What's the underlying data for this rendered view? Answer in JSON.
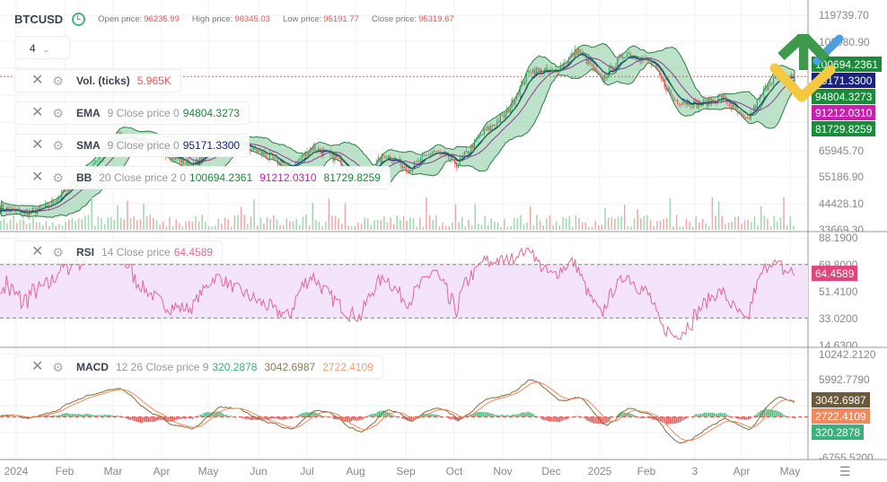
{
  "header": {
    "symbol": "BTCUSD",
    "open_label": "Open price:",
    "open": "96235.99",
    "high_label": "High price:",
    "high": "96345.03",
    "low_label": "Low price:",
    "low": "95191.77",
    "close_label": "Close price:",
    "close": "95319.67",
    "interval": "4"
  },
  "legends": {
    "vol": {
      "name": "Vol. (ticks)",
      "value": "5.965K"
    },
    "ema": {
      "name": "EMA",
      "params": "9 Close price 0",
      "value": "94804.3273"
    },
    "sma": {
      "name": "SMA",
      "params": "9 Close price 0",
      "value": "95171.3300"
    },
    "bb": {
      "name": "BB",
      "params": "20 Close price 2 0",
      "upper": "100694.2361",
      "middle": "91212.0310",
      "lower": "81729.8259"
    },
    "rsi": {
      "name": "RSI",
      "params": "14 Close price",
      "value": "64.4589"
    },
    "macd": {
      "name": "MACD",
      "params": "12 26 Close price 9",
      "hist": "320.2878",
      "macd": "3042.6987",
      "signal": "2722.4109"
    }
  },
  "price_axis": [
    "119739.70",
    "108980.90",
    "65945.70",
    "55186.90",
    "44428.10",
    "33669.30"
  ],
  "price_tags": {
    "bb_upper": "100694.2361",
    "sma": "95171.3300",
    "ema": "94804.3273",
    "bb_middle": "91212.0310",
    "bb_lower": "81729.8259"
  },
  "rsi_axis": [
    "88.1900",
    "69.8000",
    "51.4100",
    "33.0200",
    "14.6300"
  ],
  "rsi_tag": "64.4589",
  "macd_axis": [
    "10242.2120",
    "5992.7790",
    "-6755.5200"
  ],
  "macd_tags": {
    "macd": "3042.6987",
    "signal": "2722.4109",
    "hist": "320.2878"
  },
  "time_axis": [
    "2024",
    "Feb",
    "Mar",
    "Apr",
    "May",
    "Jun",
    "Jul",
    "Aug",
    "Sep",
    "Oct",
    "Nov",
    "Dec",
    "2025",
    "Feb",
    "3",
    "Apr",
    "May"
  ],
  "colors": {
    "up": "#26a65b",
    "down": "#e05a5a",
    "bb_fill": "#8fd1a6",
    "ema": "#1e3a8a",
    "sma": "#8e3a8e",
    "rsi": "#e06a9a",
    "rsi_band": "#f3e3fb",
    "macd": "#8a6a3a",
    "signal": "#f08a5d",
    "tag_green": "#1b8a3a",
    "tag_navy": "#1a237e",
    "tag_magenta": "#c71fb0",
    "tag_rsi": "#e0457b",
    "tag_macd": "#6b5a3a",
    "tag_signal": "#f08a5d",
    "tag_hist": "#3daf7a"
  },
  "chart_data": {
    "type": "candlestick",
    "price_path": [
      [
        "2024-01",
        42500
      ],
      [
        "2024-01-20",
        40000
      ],
      [
        "2024-02",
        43000
      ],
      [
        "2024-02-20",
        52000
      ],
      [
        "2024-03",
        62000
      ],
      [
        "2024-03-14",
        72000
      ],
      [
        "2024-04",
        69000
      ],
      [
        "2024-04-20",
        64000
      ],
      [
        "2024-05",
        59000
      ],
      [
        "2024-05-20",
        69000
      ],
      [
        "2024-06",
        68000
      ],
      [
        "2024-06-20",
        64000
      ],
      [
        "2024-07",
        58000
      ],
      [
        "2024-07-20",
        67000
      ],
      [
        "2024-08",
        62000
      ],
      [
        "2024-08-06",
        54000
      ],
      [
        "2024-08-25",
        64000
      ],
      [
        "2024-09",
        58000
      ],
      [
        "2024-09-28",
        65500
      ],
      [
        "2024-10-10",
        60000
      ],
      [
        "2024-10-30",
        72000
      ],
      [
        "2024-11-10",
        80000
      ],
      [
        "2024-11-22",
        98000
      ],
      [
        "2024-12",
        97000
      ],
      [
        "2024-12-17",
        106000
      ],
      [
        "2025-01",
        94000
      ],
      [
        "2025-01-20",
        105000
      ],
      [
        "2025-02",
        101000
      ],
      [
        "2025-02-25",
        86000
      ],
      [
        "2025-03",
        84000
      ],
      [
        "2025-03-25",
        87000
      ],
      [
        "2025-04-08",
        77000
      ],
      [
        "2025-04-25",
        94000
      ],
      [
        "2025-05",
        95300
      ]
    ]
  }
}
